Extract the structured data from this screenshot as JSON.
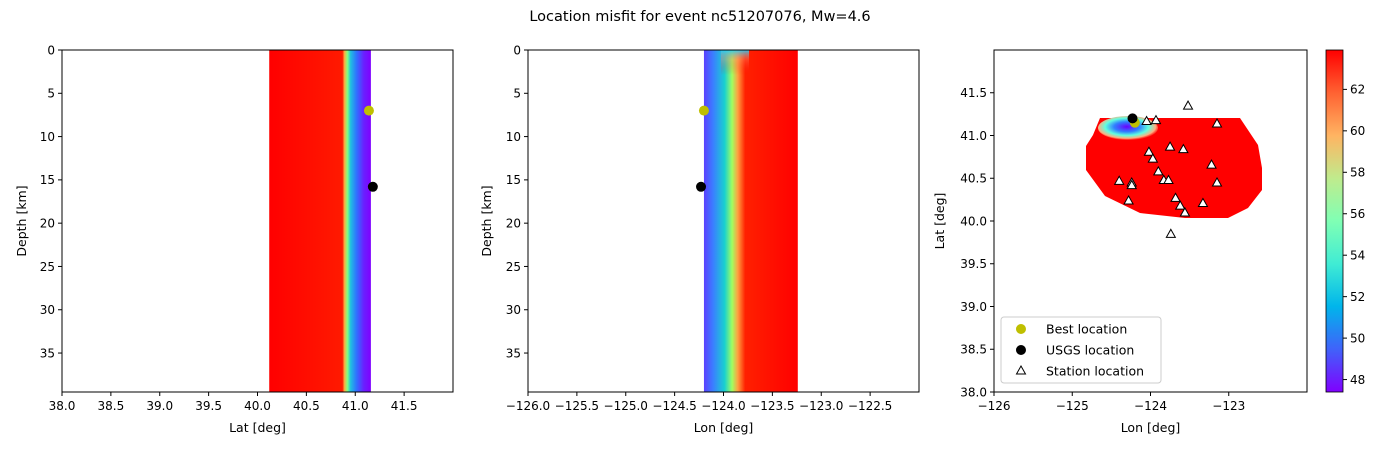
{
  "figure": {
    "title": "Location misfit for event nc51207076, Mw=4.6"
  },
  "chart_data": [
    {
      "type": "heatmap",
      "panel": "lat-depth",
      "xlabel": "Lat [deg]",
      "ylabel": "Depth [km]",
      "xlim": [
        38.0,
        42.0
      ],
      "ylim": [
        39.5,
        0
      ],
      "xticks": [
        38.0,
        38.5,
        39.0,
        39.5,
        40.0,
        40.5,
        41.0,
        41.5
      ],
      "xticklabels": [
        "38.0",
        "38.5",
        "39.0",
        "39.5",
        "40.0",
        "40.5",
        "41.0",
        "41.5"
      ],
      "yticks": [
        0,
        5,
        10,
        15,
        20,
        25,
        30,
        35
      ],
      "yticklabels": [
        "0",
        "5",
        "10",
        "15",
        "20",
        "25",
        "30",
        "35"
      ],
      "field_extent_x": [
        40.12,
        41.16
      ],
      "points": [
        {
          "name": "Best location",
          "x": 41.14,
          "y": 7.0,
          "color": "#bfbf00"
        },
        {
          "name": "USGS location",
          "x": 41.18,
          "y": 15.8,
          "color": "#000000"
        }
      ]
    },
    {
      "type": "heatmap",
      "panel": "lon-depth",
      "xlabel": "Lon [deg]",
      "ylabel": "Depth [km]",
      "xlim": [
        -126.0,
        -122.0
      ],
      "ylim": [
        39.5,
        0
      ],
      "xticks": [
        -126.0,
        -125.5,
        -125.0,
        -124.5,
        -124.0,
        -123.5,
        -123.0,
        -122.5
      ],
      "xticklabels": [
        "−126.0",
        "−125.5",
        "−125.0",
        "−124.5",
        "−124.0",
        "−123.5",
        "−123.0",
        "−122.5"
      ],
      "yticks": [
        0,
        5,
        10,
        15,
        20,
        25,
        30,
        35
      ],
      "yticklabels": [
        "0",
        "5",
        "10",
        "15",
        "20",
        "25",
        "30",
        "35"
      ],
      "field_extent_x": [
        -124.2,
        -123.24
      ],
      "points": [
        {
          "name": "Best location",
          "x": -124.2,
          "y": 7.0,
          "color": "#bfbf00"
        },
        {
          "name": "USGS location",
          "x": -124.23,
          "y": 15.8,
          "color": "#000000"
        }
      ]
    },
    {
      "type": "heatmap",
      "panel": "lon-lat",
      "xlabel": "Lon [deg]",
      "ylabel": "Lat [deg]",
      "xlim": [
        -126.0,
        -122.0
      ],
      "ylim": [
        38.0,
        42.0
      ],
      "xticks": [
        -126,
        -125,
        -124,
        -123
      ],
      "xticklabels": [
        "−126",
        "−125",
        "−124",
        "−123"
      ],
      "yticks": [
        38.0,
        38.5,
        39.0,
        39.5,
        40.0,
        40.5,
        41.0,
        41.5
      ],
      "yticklabels": [
        "38.0",
        "38.5",
        "39.0",
        "39.5",
        "40.0",
        "40.5",
        "41.0",
        "41.5"
      ],
      "best_location": {
        "x": -124.2,
        "y": 41.15
      },
      "usgs_location": {
        "x": -124.23,
        "y": 41.2
      },
      "stations": [
        {
          "x": -124.05,
          "y": 41.17
        },
        {
          "x": -123.93,
          "y": 41.18
        },
        {
          "x": -123.52,
          "y": 41.35
        },
        {
          "x": -123.15,
          "y": 41.14
        },
        {
          "x": -124.02,
          "y": 40.81
        },
        {
          "x": -123.97,
          "y": 40.73
        },
        {
          "x": -123.75,
          "y": 40.87
        },
        {
          "x": -123.58,
          "y": 40.84
        },
        {
          "x": -123.22,
          "y": 40.66
        },
        {
          "x": -123.9,
          "y": 40.58
        },
        {
          "x": -123.83,
          "y": 40.48
        },
        {
          "x": -123.77,
          "y": 40.48
        },
        {
          "x": -124.4,
          "y": 40.47
        },
        {
          "x": -124.24,
          "y": 40.45
        },
        {
          "x": -124.24,
          "y": 40.42
        },
        {
          "x": -123.15,
          "y": 40.45
        },
        {
          "x": -123.68,
          "y": 40.27
        },
        {
          "x": -123.62,
          "y": 40.18
        },
        {
          "x": -124.28,
          "y": 40.24
        },
        {
          "x": -123.33,
          "y": 40.21
        },
        {
          "x": -123.56,
          "y": 40.1
        },
        {
          "x": -123.74,
          "y": 39.85
        }
      ],
      "legend": {
        "placement": "lower-left",
        "entries": [
          {
            "label": "Best location",
            "marker": "circle",
            "color": "#bfbf00"
          },
          {
            "label": "USGS location",
            "marker": "circle",
            "color": "#000000"
          },
          {
            "label": "Station location",
            "marker": "triangle",
            "color": "#ffffff"
          }
        ]
      }
    }
  ],
  "colorbar": {
    "colormap": "rainbow",
    "range": [
      47.4,
      63.9
    ],
    "ticks": [
      48,
      50,
      52,
      54,
      56,
      58,
      60,
      62
    ],
    "ticklabels": [
      "48",
      "50",
      "52",
      "54",
      "56",
      "58",
      "60",
      "62"
    ]
  }
}
